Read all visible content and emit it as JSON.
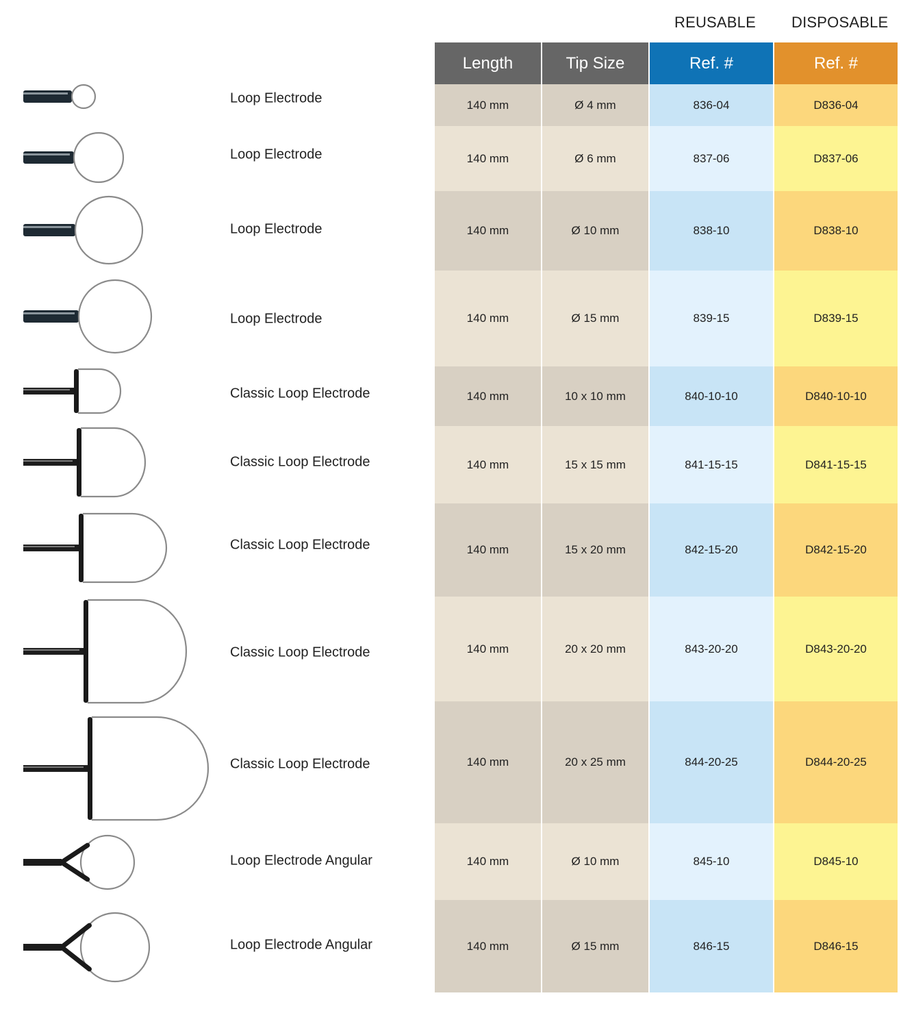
{
  "group_labels": {
    "reusable": "REUSABLE",
    "disposable": "DISPOSABLE"
  },
  "headers": {
    "length": "Length",
    "tip_size": "Tip Size",
    "reusable_ref": "Ref. #",
    "disposable_ref": "Ref. #"
  },
  "colors": {
    "header_gray": "#666666",
    "header_blue": "#0f73b6",
    "header_orange": "#e2912c",
    "gray_dark": "#d8d0c3",
    "gray_light": "#ebe3d4",
    "blue_dark": "#c8e4f6",
    "blue_light": "#e3f2fd",
    "yellow_dark": "#fcd77c",
    "yellow_light": "#fdf492"
  },
  "rows": [
    {
      "name": "Loop Electrode",
      "length": "140 mm",
      "tip": "Ø 4 mm",
      "reusable": "836-04",
      "disposable": "D836-04",
      "icon": "loop-electrode-icon"
    },
    {
      "name": "Loop Electrode",
      "length": "140 mm",
      "tip": "Ø 6 mm",
      "reusable": "837-06",
      "disposable": "D837-06",
      "icon": "loop-electrode-icon"
    },
    {
      "name": "Loop Electrode",
      "length": "140 mm",
      "tip": "Ø 10 mm",
      "reusable": "838-10",
      "disposable": "D838-10",
      "icon": "loop-electrode-icon"
    },
    {
      "name": "Loop Electrode",
      "length": "140 mm",
      "tip": "Ø 15 mm",
      "reusable": "839-15",
      "disposable": "D839-15",
      "icon": "loop-electrode-icon"
    },
    {
      "name": "Classic Loop Electrode",
      "length": "140 mm",
      "tip": "10 x 10 mm",
      "reusable": "840-10-10",
      "disposable": "D840-10-10",
      "icon": "classic-loop-electrode-icon"
    },
    {
      "name": "Classic Loop Electrode",
      "length": "140 mm",
      "tip": "15 x 15 mm",
      "reusable": "841-15-15",
      "disposable": "D841-15-15",
      "icon": "classic-loop-electrode-icon"
    },
    {
      "name": "Classic Loop Electrode",
      "length": "140 mm",
      "tip": "15 x 20 mm",
      "reusable": "842-15-20",
      "disposable": "D842-15-20",
      "icon": "classic-loop-electrode-icon"
    },
    {
      "name": "Classic Loop Electrode",
      "length": "140 mm",
      "tip": "20 x 20 mm",
      "reusable": "843-20-20",
      "disposable": "D843-20-20",
      "icon": "classic-loop-electrode-icon"
    },
    {
      "name": "Classic Loop Electrode",
      "length": "140 mm",
      "tip": "20 x 25 mm",
      "reusable": "844-20-25",
      "disposable": "D844-20-25",
      "icon": "classic-loop-electrode-icon"
    },
    {
      "name": "Loop Electrode Angular",
      "length": "140 mm",
      "tip": "Ø 10 mm",
      "reusable": "845-10",
      "disposable": "D845-10",
      "icon": "angular-loop-electrode-icon"
    },
    {
      "name": "Loop Electrode Angular",
      "length": "140 mm",
      "tip": "Ø 15 mm",
      "reusable": "846-15",
      "disposable": "D846-15",
      "icon": "angular-loop-electrode-icon"
    }
  ]
}
